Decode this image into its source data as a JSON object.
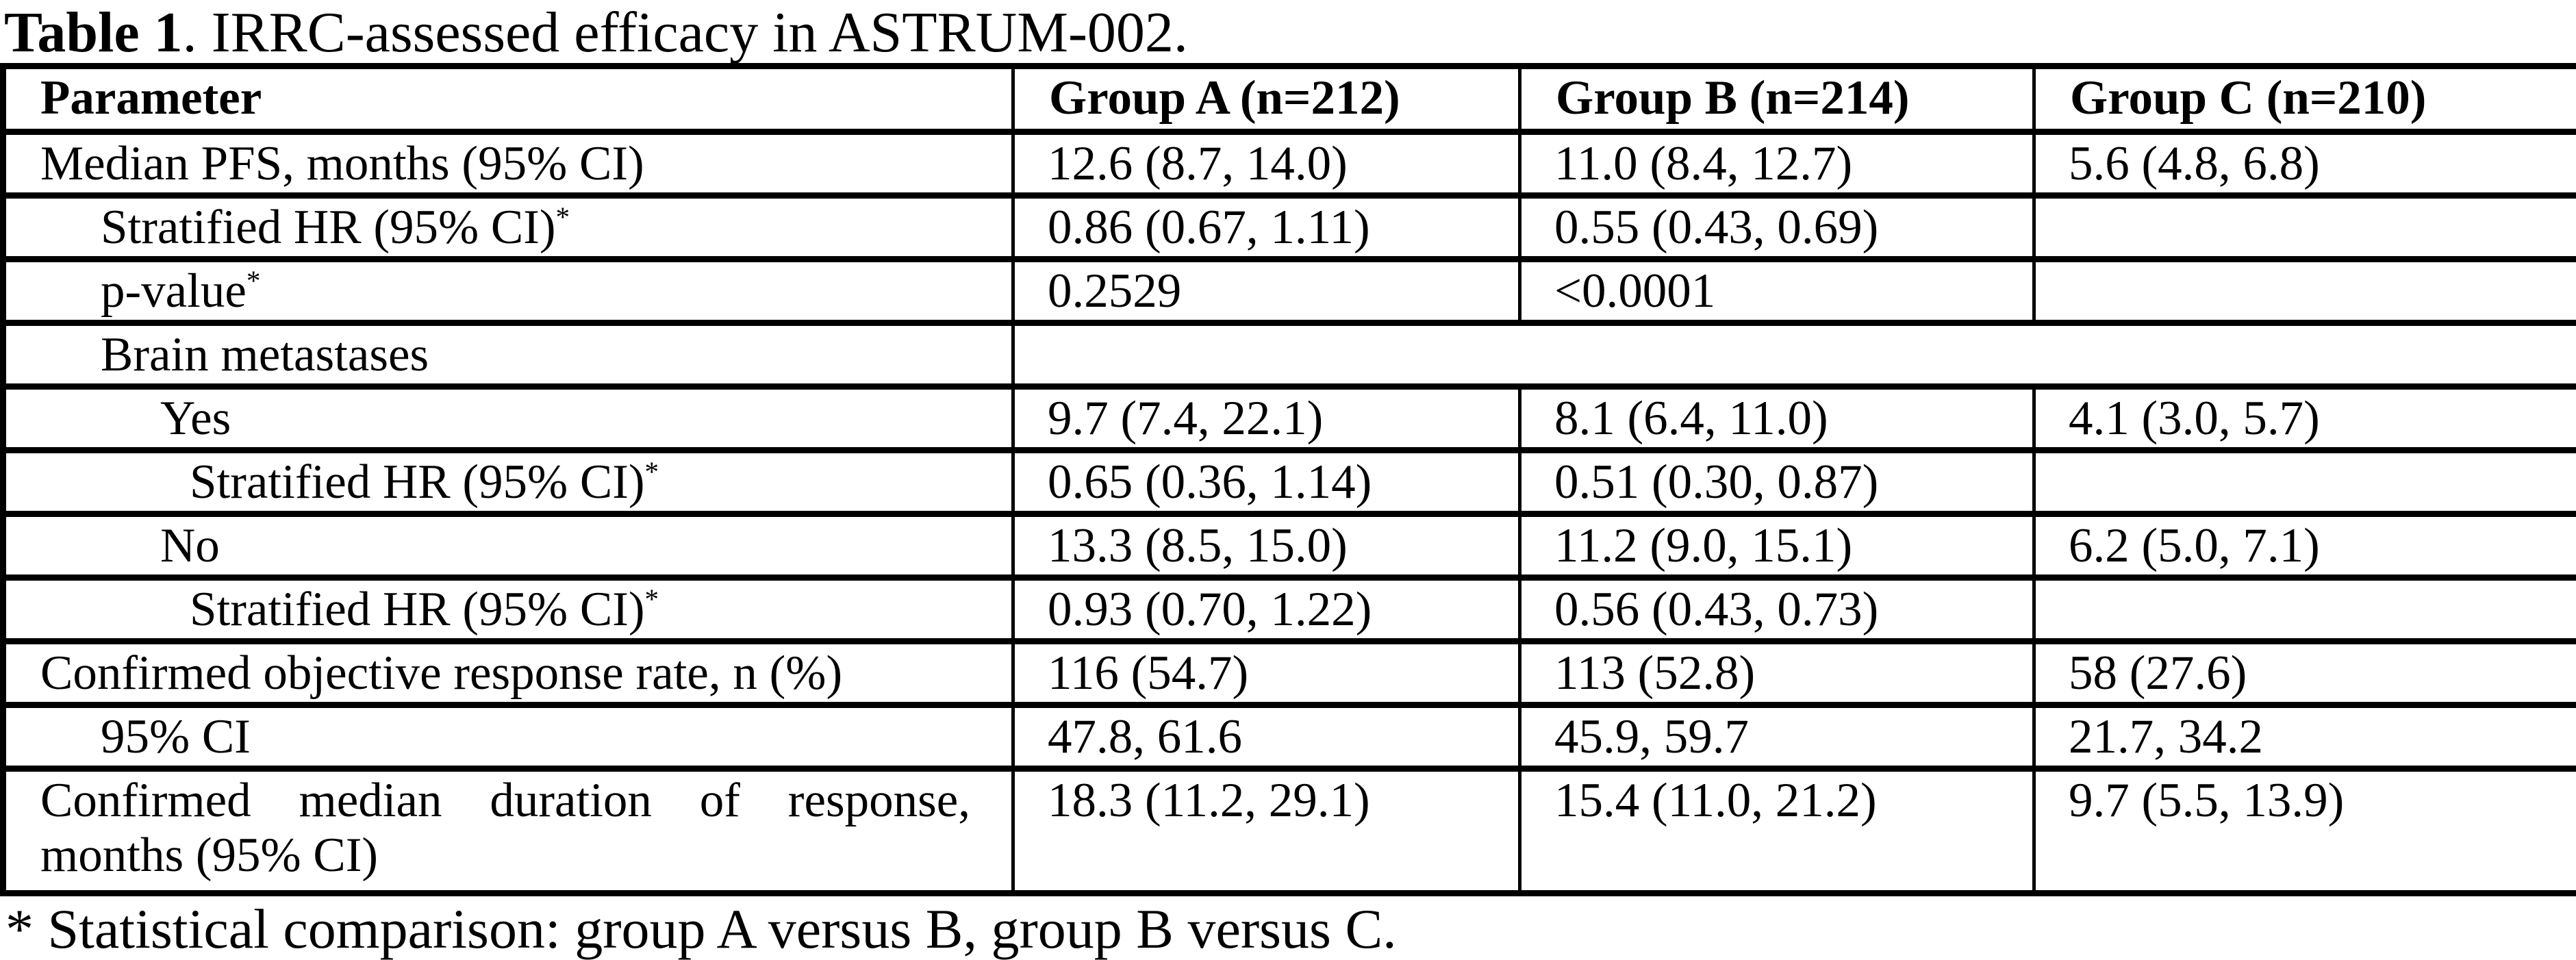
{
  "title": {
    "bold": "Table 1",
    "rest": ". IRRC-assessed efficacy in ASTRUM-002."
  },
  "table": {
    "columns": [
      "Parameter",
      "Group A (n=212)",
      "Group B (n=214)",
      "Group C (n=210)"
    ],
    "rows": [
      {
        "param": "Median PFS, months (95% CI)",
        "indent": 0,
        "sup": "",
        "merged": false,
        "tall": false,
        "justify": false,
        "a": "12.6 (8.7, 14.0)",
        "b": "11.0 (8.4, 12.7)",
        "c": "5.6 (4.8, 6.8)"
      },
      {
        "param": "Stratified HR (95% CI)",
        "indent": 1,
        "sup": "*",
        "merged": false,
        "tall": false,
        "justify": false,
        "a": "0.86 (0.67, 1.11)",
        "b": "0.55 (0.43, 0.69)",
        "c": ""
      },
      {
        "param": "p-value",
        "indent": 1,
        "sup": "*",
        "merged": false,
        "tall": false,
        "justify": false,
        "a": "0.2529",
        "b": "<0.0001",
        "c": ""
      },
      {
        "param": "Brain metastases",
        "indent": 1,
        "sup": "",
        "merged": true,
        "tall": false,
        "justify": false,
        "a": "",
        "b": "",
        "c": ""
      },
      {
        "param": "Yes",
        "indent": 2,
        "sup": "",
        "merged": false,
        "tall": false,
        "justify": false,
        "a": "9.7 (7.4, 22.1)",
        "b": "8.1 (6.4, 11.0)",
        "c": "4.1 (3.0, 5.7)"
      },
      {
        "param": "Stratified HR (95% CI)",
        "indent": 3,
        "sup": "*",
        "merged": false,
        "tall": false,
        "justify": false,
        "a": "0.65 (0.36, 1.14)",
        "b": "0.51 (0.30, 0.87)",
        "c": ""
      },
      {
        "param": "No",
        "indent": 2,
        "sup": "",
        "merged": false,
        "tall": false,
        "justify": false,
        "a": "13.3 (8.5, 15.0)",
        "b": "11.2 (9.0, 15.1)",
        "c": "6.2 (5.0, 7.1)"
      },
      {
        "param": "Stratified HR (95% CI)",
        "indent": 3,
        "sup": "*",
        "merged": false,
        "tall": false,
        "justify": false,
        "a": "0.93 (0.70, 1.22)",
        "b": "0.56 (0.43, 0.73)",
        "c": ""
      },
      {
        "param": "Confirmed objective response rate, n (%)",
        "indent": 0,
        "sup": "",
        "merged": false,
        "tall": false,
        "justify": false,
        "a": "116 (54.7)",
        "b": "113 (52.8)",
        "c": "58 (27.6)"
      },
      {
        "param": "95% CI",
        "indent": 1,
        "sup": "",
        "merged": false,
        "tall": false,
        "justify": false,
        "a": "47.8, 61.6",
        "b": "45.9, 59.7",
        "c": "21.7, 34.2"
      },
      {
        "param": "Confirmed median duration of response, months (95% CI)",
        "indent": 0,
        "sup": "",
        "merged": false,
        "tall": true,
        "justify": true,
        "a": "18.3 (11.2, 29.1)",
        "b": "15.4 (11.0, 21.2)",
        "c": "9.7 (5.5, 13.9)"
      }
    ]
  },
  "footnote": "* Statistical comparison: group A versus B, group B versus C."
}
